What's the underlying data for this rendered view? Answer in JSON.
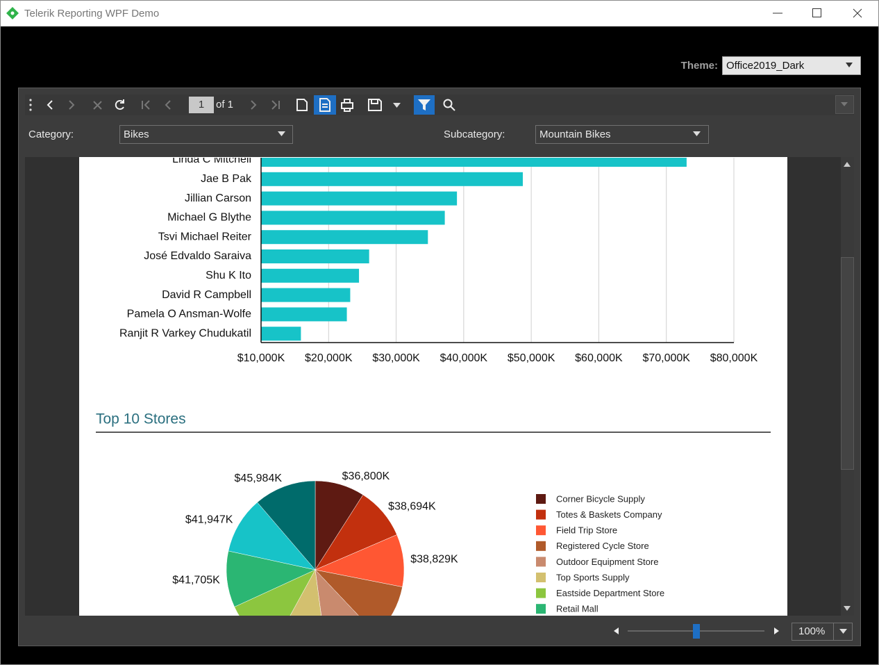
{
  "window": {
    "title": "Telerik Reporting WPF Demo"
  },
  "theme": {
    "label": "Theme:",
    "value": "Office2019_Dark"
  },
  "toolbar": {
    "page": "1",
    "page_count": "of 1"
  },
  "parameters": {
    "category_label": "Category:",
    "category": "Bikes",
    "subcategory_label": "Subcategory:",
    "subcategory": "Mountain Bikes"
  },
  "zoom": "100%",
  "chart_data": [
    {
      "type": "bar",
      "orientation": "horizontal",
      "categories": [
        "Linda C Mitchell",
        "Jae B Pak",
        "Jillian Carson",
        "Michael G Blythe",
        "Tsvi Michael Reiter",
        "José Edvaldo Saraiva",
        "Shu K Ito",
        "David R Campbell",
        "Pamela O Ansman-Wolfe",
        "Ranjit R Varkey Chudukatil"
      ],
      "values": [
        73000,
        48750,
        39000,
        37200,
        34700,
        26000,
        24500,
        23200,
        22700,
        15900
      ],
      "color": "#17c3c8",
      "xlim": [
        10000,
        80000
      ],
      "xticks": [
        {
          "value": 10000,
          "label": "$10,000K"
        },
        {
          "value": 20000,
          "label": "$20,000K"
        },
        {
          "value": 30000,
          "label": "$30,000K"
        },
        {
          "value": 40000,
          "label": "$40,000K"
        },
        {
          "value": 50000,
          "label": "$50,000K"
        },
        {
          "value": 60000,
          "label": "$60,000K"
        },
        {
          "value": 70000,
          "label": "$70,000K"
        },
        {
          "value": 80000,
          "label": "$80,000K"
        }
      ],
      "grid": true
    },
    {
      "type": "pie",
      "title": "Top 10 Stores",
      "categories": [
        "Corner Bicycle Supply",
        "Totes & Baskets Company",
        "Field Trip Store",
        "Registered Cycle Store",
        "Outdoor Equipment Store",
        "Top Sports Supply",
        "Eastside Department Store",
        "Retail Mall",
        null,
        null
      ],
      "values": [
        36800,
        38694,
        38829,
        40100,
        40600,
        41000,
        41400,
        41705,
        41947,
        45984
      ],
      "value_labels": [
        "$36,800K",
        "$38,694K",
        "$38,829K",
        null,
        null,
        null,
        null,
        "$41,705K",
        "$41,947K",
        "$45,984K"
      ],
      "colors": [
        "#5e1a12",
        "#c2300e",
        "#ff5733",
        "#b05a2a",
        "#c98a6e",
        "#d3c06f",
        "#8cc63f",
        "#2bb673",
        "#17c3c8",
        "#006b6b"
      ]
    }
  ]
}
